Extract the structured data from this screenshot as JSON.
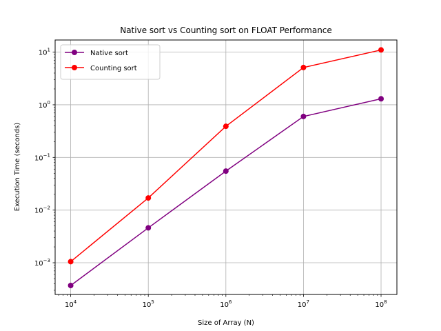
{
  "chart_data": {
    "type": "line",
    "title": "Native sort vs Counting sort on FLOAT Performance",
    "xlabel": "Size of Array (N)",
    "ylabel": "Execution Time (seconds)",
    "x_scale": "log",
    "y_scale": "log",
    "x": [
      10000,
      100000,
      1000000,
      10000000,
      100000000
    ],
    "xlim": [
      6300,
      160000000
    ],
    "ylim": [
      0.00025,
      17
    ],
    "x_ticks": [
      {
        "value": 10000,
        "base": "10",
        "exp": "4"
      },
      {
        "value": 100000,
        "base": "10",
        "exp": "5"
      },
      {
        "value": 1000000,
        "base": "10",
        "exp": "6"
      },
      {
        "value": 10000000,
        "base": "10",
        "exp": "7"
      },
      {
        "value": 100000000,
        "base": "10",
        "exp": "8"
      }
    ],
    "y_ticks": [
      {
        "value": 0.001,
        "base": "10",
        "exp": "−3"
      },
      {
        "value": 0.01,
        "base": "10",
        "exp": "−2"
      },
      {
        "value": 0.1,
        "base": "10",
        "exp": "−1"
      },
      {
        "value": 1,
        "base": "10",
        "exp": "0"
      },
      {
        "value": 10,
        "base": "10",
        "exp": "1"
      }
    ],
    "grid": true,
    "legend_position": "top-left",
    "series": [
      {
        "name": "Native sort",
        "color": "#800080",
        "values": [
          0.00037,
          0.0046,
          0.055,
          0.6,
          1.3
        ]
      },
      {
        "name": "Counting sort",
        "color": "#ff0000",
        "values": [
          0.00105,
          0.017,
          0.39,
          5.1,
          11
        ]
      }
    ]
  }
}
